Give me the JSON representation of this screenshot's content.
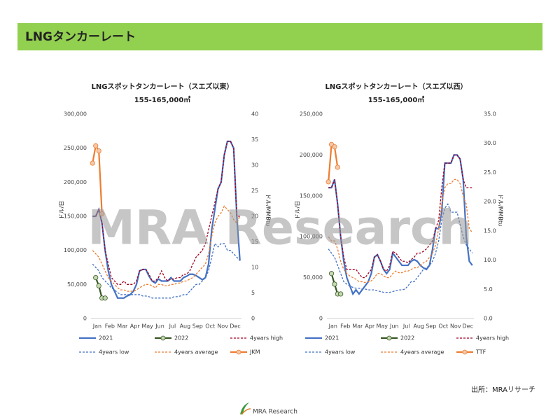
{
  "header": {
    "title": "LNGタンカーレート"
  },
  "watermark": "MRA Research",
  "source": "出所：MRAリサーチ",
  "footer_logo": "MRA Research",
  "chart_data": [
    {
      "type": "line",
      "title": "LNGスポットタンカーレート（スエズ以東）",
      "subtitle": "155-165,000㎥",
      "ylabel": "ドル/日",
      "y2label": "ドル/MMBtu",
      "categories": [
        "Jan",
        null,
        null,
        null,
        "Feb",
        null,
        null,
        null,
        "Mar",
        null,
        null,
        null,
        "Apr",
        null,
        null,
        null,
        "May",
        null,
        null,
        null,
        "Jun",
        null,
        null,
        null,
        "Jul",
        null,
        null,
        null,
        "Aug",
        null,
        null,
        null,
        "Sep",
        null,
        null,
        null,
        "Oct",
        null,
        null,
        null,
        "Nov",
        null,
        null,
        null,
        "Dec",
        null,
        null,
        null
      ],
      "ylim": [
        0,
        300000
      ],
      "yticks": [
        0,
        {
          "value": 50000,
          "label": "50,000"
        },
        {
          "value": 100000,
          "label": "100,000"
        },
        {
          "value": 150000,
          "label": "150,000"
        },
        {
          "value": 200000,
          "label": "200,000"
        },
        {
          "value": 250000,
          "label": "250,000"
        },
        {
          "value": 300000,
          "label": "300,000"
        }
      ],
      "y2lim": [
        0,
        40
      ],
      "y2ticks": [
        0,
        5,
        10,
        15,
        20,
        25,
        30,
        35,
        40
      ],
      "grid": false,
      "series": [
        {
          "name": "2021",
          "color": "#4472c4",
          "dashed": false,
          "markers": false,
          "values": [
            150000,
            150000,
            160000,
            140000,
            100000,
            70000,
            50000,
            40000,
            30000,
            30000,
            30000,
            33000,
            35000,
            40000,
            50000,
            70000,
            72000,
            72000,
            62000,
            55000,
            52000,
            58000,
            55000,
            55000,
            55000,
            60000,
            55000,
            55000,
            55000,
            60000,
            62000,
            65000,
            65000,
            63000,
            60000,
            57000,
            60000,
            80000,
            130000,
            160000,
            190000,
            200000,
            240000,
            260000,
            260000,
            250000,
            150000,
            85000
          ]
        },
        {
          "name": "2022",
          "color": "#375623",
          "dashed": false,
          "markers": true,
          "values": [
            null,
            60000,
            48000,
            30000,
            30000,
            null,
            null,
            null,
            null,
            null,
            null,
            null,
            null,
            null,
            null,
            null,
            null,
            null,
            null,
            null,
            null,
            null,
            null,
            null,
            null,
            null,
            null,
            null,
            null,
            null,
            null,
            null,
            null,
            null,
            null,
            null,
            null,
            null,
            null,
            null,
            null,
            null,
            null,
            null,
            null,
            null,
            null,
            null
          ]
        },
        {
          "name": "4years high",
          "color": "#a00020",
          "dashed": true,
          "markers": false,
          "values": [
            150000,
            150000,
            160000,
            140000,
            100000,
            80000,
            60000,
            55000,
            50000,
            50000,
            55000,
            50000,
            50000,
            50000,
            55000,
            70000,
            72000,
            72000,
            65000,
            55000,
            55000,
            60000,
            70000,
            60000,
            55000,
            58000,
            58000,
            60000,
            60000,
            65000,
            65000,
            70000,
            80000,
            90000,
            95000,
            100000,
            110000,
            130000,
            150000,
            170000,
            190000,
            200000,
            240000,
            260000,
            260000,
            250000,
            150000,
            150000
          ]
        },
        {
          "name": "4years low",
          "color": "#4472c4",
          "dashed": true,
          "markers": false,
          "values": [
            80000,
            75000,
            70000,
            60000,
            55000,
            50000,
            45000,
            42000,
            38000,
            35000,
            35000,
            35000,
            35000,
            35000,
            35000,
            35000,
            33000,
            33000,
            32000,
            30000,
            30000,
            30000,
            30000,
            30000,
            30000,
            30000,
            32000,
            32000,
            33000,
            35000,
            35000,
            40000,
            45000,
            50000,
            50000,
            55000,
            60000,
            70000,
            90000,
            110000,
            105000,
            110000,
            110000,
            100000,
            100000,
            95000,
            90000,
            85000
          ]
        },
        {
          "name": "4years average",
          "color": "#ed7d31",
          "dashed": true,
          "markers": false,
          "values": [
            100000,
            95000,
            90000,
            80000,
            70000,
            60000,
            55000,
            50000,
            45000,
            42000,
            42000,
            40000,
            40000,
            40000,
            42000,
            45000,
            48000,
            50000,
            50000,
            48000,
            45000,
            50000,
            50000,
            48000,
            48000,
            50000,
            50000,
            52000,
            52000,
            55000,
            55000,
            58000,
            60000,
            65000,
            70000,
            75000,
            80000,
            95000,
            120000,
            140000,
            150000,
            155000,
            165000,
            160000,
            155000,
            145000,
            140000,
            150000
          ]
        },
        {
          "name": "JKM",
          "color": "#ed7d31",
          "dashed": false,
          "markers": true,
          "axis": "y2",
          "values": [
            30.4,
            33.8,
            32.8,
            20.5,
            null,
            null,
            null,
            null,
            null,
            null,
            null,
            null,
            null,
            null,
            null,
            null,
            null,
            null,
            null,
            null,
            null,
            null,
            null,
            null,
            null,
            null,
            null,
            null,
            null,
            null,
            null,
            null,
            null,
            null,
            null,
            null,
            null,
            null,
            null,
            null,
            null,
            null,
            null,
            null,
            null,
            null,
            null,
            null
          ]
        }
      ]
    },
    {
      "type": "line",
      "title": "LNGスポットタンカーレート（スエズ以西）",
      "subtitle": "155-165,000㎥",
      "ylabel": "ドル/日",
      "y2label": "ドル/MMBtu",
      "categories": [
        "Jan",
        null,
        null,
        null,
        "Feb",
        null,
        null,
        null,
        "Mar",
        null,
        null,
        null,
        "Apr",
        null,
        null,
        null,
        "May",
        null,
        null,
        null,
        "Jun",
        null,
        null,
        null,
        "Jul",
        null,
        null,
        null,
        "Aug",
        null,
        null,
        null,
        "Sep",
        null,
        null,
        null,
        "Oct",
        null,
        null,
        null,
        "Nov",
        null,
        null,
        null,
        "Dec",
        null,
        null,
        null
      ],
      "ylim": [
        0,
        250000
      ],
      "yticks": [
        0,
        {
          "value": 50000,
          "label": "50,000"
        },
        {
          "value": 100000,
          "label": "100,000"
        },
        {
          "value": 150000,
          "label": "150,000"
        },
        {
          "value": 200000,
          "label": "200,000"
        },
        {
          "value": 250000,
          "label": "250,000"
        }
      ],
      "y2lim": [
        0,
        35
      ],
      "y2ticks": [
        {
          "value": 0,
          "label": "0.0"
        },
        {
          "value": 5,
          "label": "5.0"
        },
        {
          "value": 10,
          "label": "10.0"
        },
        {
          "value": 15,
          "label": "15.0"
        },
        {
          "value": 20,
          "label": "20.0"
        },
        {
          "value": 25,
          "label": "25.0"
        },
        {
          "value": 30,
          "label": "30.0"
        },
        {
          "value": 35,
          "label": "35.0"
        }
      ],
      "grid": false,
      "series": [
        {
          "name": "2021",
          "color": "#4472c4",
          "dashed": false,
          "markers": false,
          "values": [
            160000,
            160000,
            170000,
            140000,
            100000,
            70000,
            50000,
            40000,
            30000,
            35000,
            30000,
            35000,
            40000,
            45000,
            55000,
            75000,
            78000,
            70000,
            60000,
            55000,
            60000,
            80000,
            75000,
            70000,
            65000,
            65000,
            65000,
            70000,
            72000,
            70000,
            65000,
            62000,
            60000,
            65000,
            85000,
            110000,
            110000,
            130000,
            190000,
            190000,
            190000,
            200000,
            200000,
            195000,
            170000,
            100000,
            70000,
            65000
          ]
        },
        {
          "name": "2022",
          "color": "#375623",
          "dashed": false,
          "markers": true,
          "values": [
            null,
            55000,
            42000,
            30000,
            30000,
            null,
            null,
            null,
            null,
            null,
            null,
            null,
            null,
            null,
            null,
            null,
            null,
            null,
            null,
            null,
            null,
            null,
            null,
            null,
            null,
            null,
            null,
            null,
            null,
            null,
            null,
            null,
            null,
            null,
            null,
            null,
            null,
            null,
            null,
            null,
            null,
            null,
            null,
            null,
            null,
            null,
            null,
            null
          ]
        },
        {
          "name": "4years high",
          "color": "#a00020",
          "dashed": true,
          "markers": false,
          "values": [
            160000,
            160000,
            170000,
            140000,
            100000,
            75000,
            60000,
            60000,
            60000,
            60000,
            55000,
            50000,
            50000,
            55000,
            60000,
            75000,
            78000,
            70000,
            60000,
            58000,
            65000,
            82000,
            80000,
            75000,
            70000,
            70000,
            68000,
            72000,
            75000,
            80000,
            80000,
            82000,
            85000,
            90000,
            95000,
            110000,
            120000,
            160000,
            190000,
            190000,
            190000,
            200000,
            200000,
            195000,
            170000,
            160000,
            160000,
            160000
          ]
        },
        {
          "name": "4years low",
          "color": "#4472c4",
          "dashed": true,
          "markers": false,
          "values": [
            85000,
            80000,
            75000,
            65000,
            55000,
            45000,
            42000,
            40000,
            38000,
            37000,
            37000,
            36000,
            36000,
            35000,
            35000,
            35000,
            34000,
            33000,
            32000,
            32000,
            32000,
            33000,
            34000,
            35000,
            35000,
            36000,
            40000,
            45000,
            45000,
            50000,
            55000,
            60000,
            62000,
            65000,
            70000,
            80000,
            95000,
            120000,
            135000,
            140000,
            130000,
            130000,
            130000,
            115000,
            100000,
            90000,
            85000,
            80000
          ]
        },
        {
          "name": "4years average",
          "color": "#ed7d31",
          "dashed": true,
          "markers": false,
          "values": [
            100000,
            95000,
            95000,
            85000,
            70000,
            60000,
            55000,
            52000,
            50000,
            48000,
            45000,
            45000,
            44000,
            45000,
            46000,
            50000,
            55000,
            55000,
            52000,
            50000,
            50000,
            55000,
            58000,
            56000,
            56000,
            58000,
            58000,
            60000,
            62000,
            62000,
            65000,
            68000,
            70000,
            75000,
            80000,
            90000,
            110000,
            140000,
            160000,
            165000,
            165000,
            170000,
            170000,
            165000,
            150000,
            140000,
            110000,
            105000
          ]
        },
        {
          "name": "TTF",
          "color": "#ed7d31",
          "dashed": false,
          "markers": true,
          "axis": "y2",
          "values": [
            23.4,
            29.8,
            29.4,
            25.9,
            null,
            null,
            null,
            null,
            null,
            null,
            null,
            null,
            null,
            null,
            null,
            null,
            null,
            null,
            null,
            null,
            null,
            null,
            null,
            null,
            null,
            null,
            null,
            null,
            null,
            null,
            null,
            null,
            null,
            null,
            null,
            null,
            null,
            null,
            null,
            null,
            null,
            null,
            null,
            null,
            null,
            null,
            null,
            null
          ]
        }
      ]
    }
  ]
}
